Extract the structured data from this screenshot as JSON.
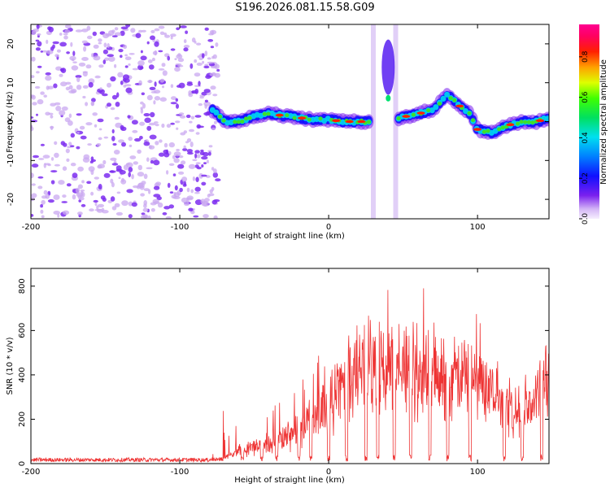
{
  "title": "S196.2026.081.15.58.G09",
  "colors": {
    "line": "#ee3333",
    "axis": "#000000",
    "scatter_light": "#c9a8f0",
    "scatter_dark": "#7d2df0"
  },
  "colorbar": {
    "label": "Normalized spectral amplitude",
    "ticks": [
      "0.0",
      "0.2",
      "0.4",
      "0.6",
      "0.8"
    ],
    "tick_values": [
      0.0,
      0.2,
      0.4,
      0.6,
      0.8
    ],
    "range": [
      0.0,
      0.96
    ],
    "colormap": "rainbow (magenta-purple-blue-cyan-green-yellow-orange-red-pink)"
  },
  "chart_data": [
    {
      "type": "heatmap",
      "name": "spectrogram",
      "xlabel": "Height of straight line (km)",
      "ylabel": "Frequency (Hz)",
      "xlim": [
        -200,
        148
      ],
      "ylim": [
        -25,
        25
      ],
      "xticks": [
        -200,
        -100,
        0,
        100
      ],
      "xtick_labels": [
        "-200",
        "-100",
        "0",
        "100"
      ],
      "yticks": [
        -20,
        -10,
        0,
        10,
        20
      ],
      "ytick_labels": [
        "-20",
        "-10",
        "0",
        "10",
        "20"
      ],
      "noise_region_x": [
        -200,
        -78
      ],
      "tone_track": [
        {
          "x": -78,
          "f": 3
        },
        {
          "x": -70,
          "f": 0
        },
        {
          "x": -60,
          "f": 0
        },
        {
          "x": -50,
          "f": 1.5
        },
        {
          "x": -40,
          "f": 2
        },
        {
          "x": -30,
          "f": 1.5
        },
        {
          "x": -20,
          "f": 1
        },
        {
          "x": -10,
          "f": 0.5
        },
        {
          "x": 0,
          "f": 0.5
        },
        {
          "x": 10,
          "f": 0
        },
        {
          "x": 20,
          "f": 0
        },
        {
          "x": 26,
          "f": 0
        },
        {
          "x": 48,
          "f": 1
        },
        {
          "x": 60,
          "f": 2
        },
        {
          "x": 70,
          "f": 3
        },
        {
          "x": 80,
          "f": 7
        },
        {
          "x": 88,
          "f": 4
        },
        {
          "x": 95,
          "f": 2
        },
        {
          "x": 100,
          "f": -2
        },
        {
          "x": 110,
          "f": -3
        },
        {
          "x": 120,
          "f": -1
        },
        {
          "x": 130,
          "f": 0
        },
        {
          "x": 140,
          "f": 0
        },
        {
          "x": 148,
          "f": 1
        }
      ],
      "vertical_streaks_x": [
        30,
        45
      ]
    },
    {
      "type": "line",
      "name": "snr",
      "xlabel": "Height of straight line (km)",
      "ylabel": "SNR (10 * v/v)",
      "xlim": [
        -200,
        148
      ],
      "ylim": [
        0,
        880
      ],
      "xticks": [
        -200,
        -100,
        0,
        100
      ],
      "xtick_labels": [
        "-200",
        "-100",
        "0",
        "100"
      ],
      "yticks": [
        0,
        200,
        400,
        600,
        800
      ],
      "ytick_labels": [
        "0",
        "200",
        "400",
        "600",
        "800"
      ],
      "envelope": [
        {
          "x": -200,
          "y": 20
        },
        {
          "x": -80,
          "y": 20
        },
        {
          "x": -70,
          "y": 40
        },
        {
          "x": -60,
          "y": 90
        },
        {
          "x": -50,
          "y": 110
        },
        {
          "x": -40,
          "y": 140
        },
        {
          "x": -30,
          "y": 160
        },
        {
          "x": -20,
          "y": 250
        },
        {
          "x": -10,
          "y": 300
        },
        {
          "x": 0,
          "y": 430
        },
        {
          "x": 10,
          "y": 540
        },
        {
          "x": 20,
          "y": 600
        },
        {
          "x": 30,
          "y": 640
        },
        {
          "x": 40,
          "y": 660
        },
        {
          "x": 50,
          "y": 650
        },
        {
          "x": 60,
          "y": 630
        },
        {
          "x": 70,
          "y": 600
        },
        {
          "x": 80,
          "y": 560
        },
        {
          "x": 90,
          "y": 600
        },
        {
          "x": 100,
          "y": 560
        },
        {
          "x": 110,
          "y": 480
        },
        {
          "x": 120,
          "y": 400
        },
        {
          "x": 130,
          "y": 330
        },
        {
          "x": 140,
          "y": 450
        },
        {
          "x": 148,
          "y": 550
        }
      ],
      "dropouts_x": [
        -58,
        -45,
        -35,
        -20,
        -12,
        0,
        12,
        25,
        33,
        44,
        55,
        68,
        80,
        95,
        118,
        130,
        143
      ]
    }
  ]
}
